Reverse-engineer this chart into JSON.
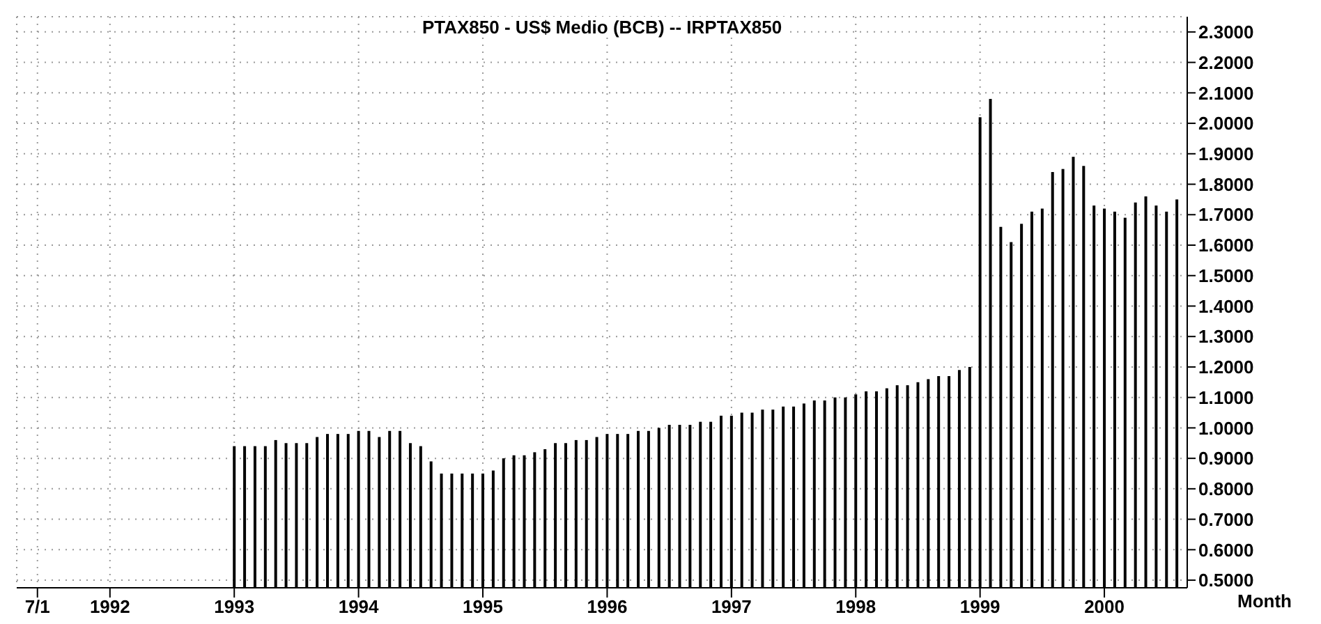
{
  "chart_data": {
    "type": "bar",
    "title": "PTAX850 - US$ Medio (BCB) -- IRPTAX850",
    "xlabel": "Month",
    "x": [
      "1993-01",
      "1993-02",
      "1993-03",
      "1993-04",
      "1993-05",
      "1993-06",
      "1993-07",
      "1993-08",
      "1993-09",
      "1993-10",
      "1993-11",
      "1993-12",
      "1994-01",
      "1994-02",
      "1994-03",
      "1994-04",
      "1994-05",
      "1994-06",
      "1994-07",
      "1994-08",
      "1994-09",
      "1994-10",
      "1994-11",
      "1994-12",
      "1995-01",
      "1995-02",
      "1995-03",
      "1995-04",
      "1995-05",
      "1995-06",
      "1995-07",
      "1995-08",
      "1995-09",
      "1995-10",
      "1995-11",
      "1995-12",
      "1996-01",
      "1996-02",
      "1996-03",
      "1996-04",
      "1996-05",
      "1996-06",
      "1996-07",
      "1996-08",
      "1996-09",
      "1996-10",
      "1996-11",
      "1996-12",
      "1997-01",
      "1997-02",
      "1997-03",
      "1997-04",
      "1997-05",
      "1997-06",
      "1997-07",
      "1997-08",
      "1997-09",
      "1997-10",
      "1997-11",
      "1997-12",
      "1998-01",
      "1998-02",
      "1998-03",
      "1998-04",
      "1998-05",
      "1998-06",
      "1998-07",
      "1998-08",
      "1998-09",
      "1998-10",
      "1998-11",
      "1998-12",
      "1999-01",
      "1999-02",
      "1999-03",
      "1999-04",
      "1999-05",
      "1999-06",
      "1999-07",
      "1999-08",
      "1999-09",
      "1999-10",
      "1999-11",
      "1999-12",
      "2000-01",
      "2000-02",
      "2000-03",
      "2000-04",
      "2000-05",
      "2000-06",
      "2000-07",
      "2000-08"
    ],
    "values": [
      0.94,
      0.94,
      0.94,
      0.94,
      0.96,
      0.95,
      0.95,
      0.95,
      0.97,
      0.98,
      0.98,
      0.98,
      0.99,
      0.99,
      0.97,
      0.99,
      0.99,
      0.95,
      0.94,
      0.89,
      0.85,
      0.85,
      0.85,
      0.85,
      0.85,
      0.86,
      0.9,
      0.91,
      0.91,
      0.92,
      0.93,
      0.95,
      0.95,
      0.96,
      0.96,
      0.97,
      0.98,
      0.98,
      0.98,
      0.99,
      0.99,
      1.0,
      1.01,
      1.01,
      1.01,
      1.02,
      1.02,
      1.04,
      1.04,
      1.05,
      1.05,
      1.06,
      1.06,
      1.07,
      1.07,
      1.08,
      1.09,
      1.09,
      1.1,
      1.1,
      1.11,
      1.12,
      1.12,
      1.13,
      1.14,
      1.14,
      1.15,
      1.16,
      1.17,
      1.17,
      1.19,
      1.2,
      2.02,
      2.08,
      1.66,
      1.61,
      1.67,
      1.71,
      1.72,
      1.84,
      1.85,
      1.89,
      1.86,
      1.73,
      1.72,
      1.71,
      1.69,
      1.74,
      1.76,
      1.73,
      1.71,
      1.75
    ],
    "color": "#000000",
    "xlim": [
      "1991-04",
      "2000-09"
    ],
    "xticks": [
      {
        "value": "1991-06",
        "label": "7/1"
      },
      {
        "value": "1992-01",
        "label": "1992"
      },
      {
        "value": "1993-01",
        "label": "1993"
      },
      {
        "value": "1994-01",
        "label": "1994"
      },
      {
        "value": "1995-01",
        "label": "1995"
      },
      {
        "value": "1996-01",
        "label": "1996"
      },
      {
        "value": "1997-01",
        "label": "1997"
      },
      {
        "value": "1998-01",
        "label": "1998"
      },
      {
        "value": "1999-01",
        "label": "1999"
      },
      {
        "value": "2000-01",
        "label": "2000"
      }
    ],
    "ylim": [
      0.475,
      2.35
    ],
    "yticks": [
      {
        "value": 0.5,
        "label": "0.5000"
      },
      {
        "value": 0.6,
        "label": "0.6000"
      },
      {
        "value": 0.7,
        "label": "0.7000"
      },
      {
        "value": 0.8,
        "label": "0.8000"
      },
      {
        "value": 0.9,
        "label": "0.9000"
      },
      {
        "value": 1.0,
        "label": "1.0000"
      },
      {
        "value": 1.1,
        "label": "1.1000"
      },
      {
        "value": 1.2,
        "label": "1.2000"
      },
      {
        "value": 1.3,
        "label": "1.3000"
      },
      {
        "value": 1.4,
        "label": "1.4000"
      },
      {
        "value": 1.5,
        "label": "1.5000"
      },
      {
        "value": 1.6,
        "label": "1.6000"
      },
      {
        "value": 1.7,
        "label": "1.7000"
      },
      {
        "value": 1.8,
        "label": "1.8000"
      },
      {
        "value": 1.9,
        "label": "1.9000"
      },
      {
        "value": 2.0,
        "label": "2.0000"
      },
      {
        "value": 2.1,
        "label": "2.1000"
      },
      {
        "value": 2.2,
        "label": "2.2000"
      },
      {
        "value": 2.3,
        "label": "2.3000"
      }
    ],
    "grid": true
  }
}
